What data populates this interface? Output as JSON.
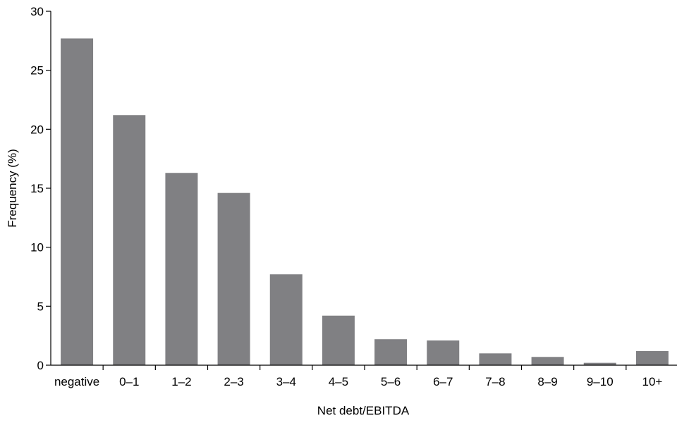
{
  "chart_data": {
    "type": "bar",
    "xlabel": "Net debt/EBITDA",
    "ylabel": "Frequency (%)",
    "categories": [
      "negative",
      "0–1",
      "1–2",
      "2–3",
      "3–4",
      "4–5",
      "5–6",
      "6–7",
      "7–8",
      "8–9",
      "9–10",
      "10+"
    ],
    "values": [
      27.7,
      21.2,
      16.3,
      14.6,
      7.7,
      4.2,
      2.2,
      2.1,
      1.0,
      0.7,
      0.2,
      1.2
    ],
    "ylim": [
      0,
      30
    ],
    "yticks": [
      0,
      5,
      10,
      15,
      20,
      25,
      30
    ],
    "grid": false,
    "legend": "none",
    "colors": {
      "bar": "#808083",
      "axis": "#000000"
    }
  }
}
